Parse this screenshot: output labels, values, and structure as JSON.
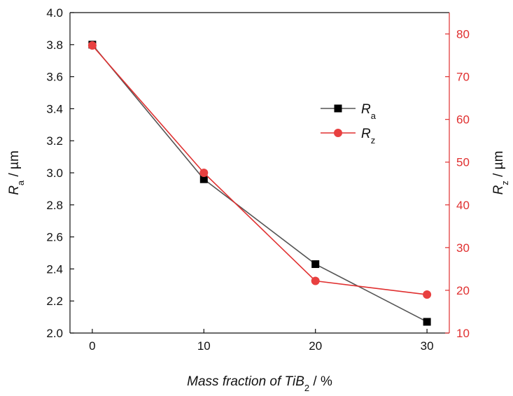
{
  "chart_data": {
    "type": "line",
    "x": [
      0,
      10,
      20,
      30
    ],
    "xlim": [
      -2,
      32
    ],
    "xticks": [
      "0",
      "10",
      "20",
      "30"
    ],
    "xlabel": {
      "main": "Mass fraction of TiB",
      "sub": "2",
      "tail": " / %"
    },
    "left_axis": {
      "ylim": [
        2.0,
        4.0
      ],
      "ticks": [
        "2.0",
        "2.2",
        "2.4",
        "2.6",
        "2.8",
        "3.0",
        "3.2",
        "3.4",
        "3.6",
        "3.8",
        "4.0"
      ],
      "label": {
        "main": "R",
        "sub": "a",
        "tail": " / µm"
      },
      "color": "#111111"
    },
    "right_axis": {
      "ylim": [
        10,
        85
      ],
      "ticks": [
        "10",
        "20",
        "30",
        "40",
        "50",
        "60",
        "70",
        "80"
      ],
      "label": {
        "main": "R",
        "sub": "z",
        "tail": " / µm"
      },
      "color": "#e03030"
    },
    "series": [
      {
        "name": {
          "main": "R",
          "sub": "a"
        },
        "axis": "left",
        "marker": "square",
        "line_color": "#555555",
        "marker_color": "#000000",
        "values": [
          3.8,
          2.96,
          2.43,
          2.07
        ]
      },
      {
        "name": {
          "main": "R",
          "sub": "z"
        },
        "axis": "right",
        "marker": "circle",
        "line_color": "#e03030",
        "marker_color": "#e84040",
        "values": [
          77.3,
          47.5,
          22.2,
          19.0
        ]
      }
    ],
    "legend": "upper-right-inside"
  }
}
